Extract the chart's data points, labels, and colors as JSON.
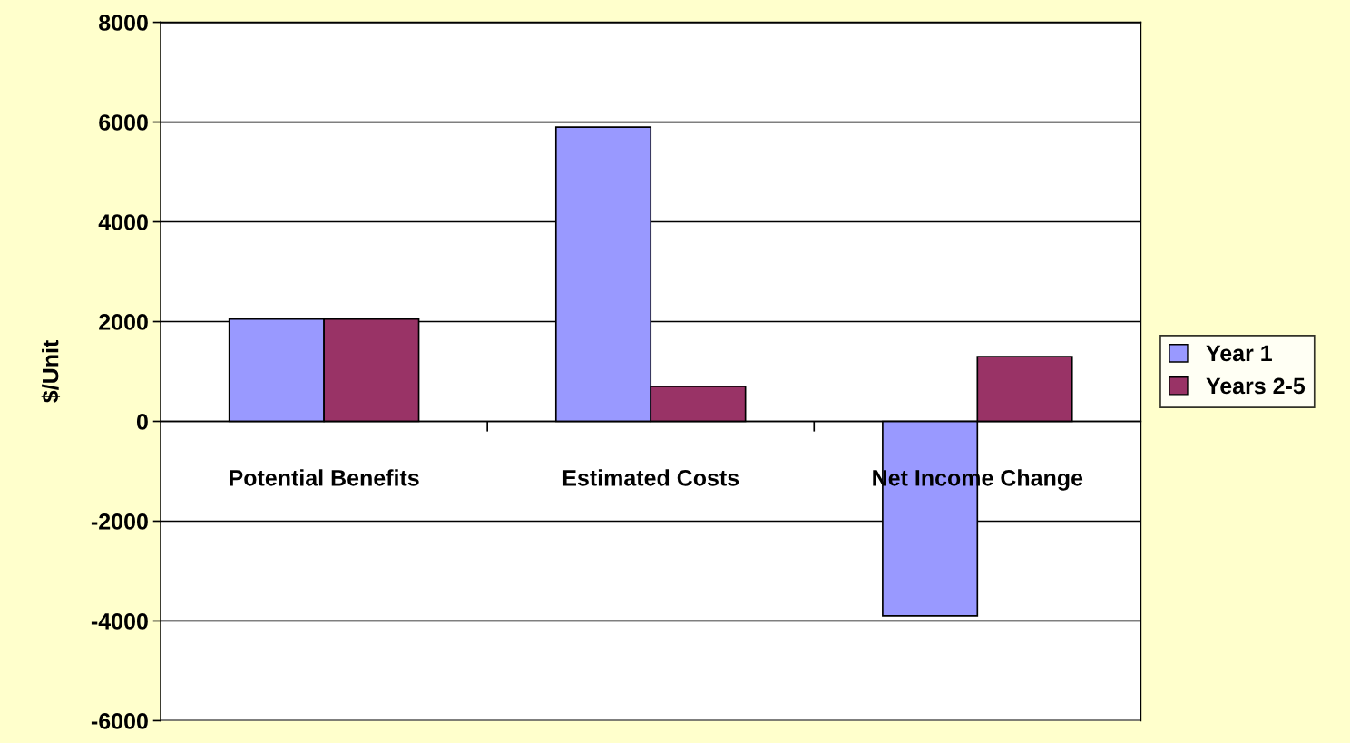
{
  "chart_data": {
    "type": "bar",
    "ylabel": "$/Unit",
    "categories": [
      "Potential Benefits",
      "Estimated Costs",
      "Net Income Change"
    ],
    "series": [
      {
        "name": "Year 1",
        "color": "#9999ff",
        "values": [
          2050,
          5900,
          -3900
        ]
      },
      {
        "name": "Years 2-5",
        "color": "#993366",
        "values": [
          2050,
          700,
          1300
        ]
      }
    ],
    "ylim": [
      -6000,
      8000
    ],
    "yticks": [
      -6000,
      -4000,
      -2000,
      0,
      2000,
      4000,
      6000,
      8000
    ],
    "grid": "y",
    "legend": "right"
  }
}
